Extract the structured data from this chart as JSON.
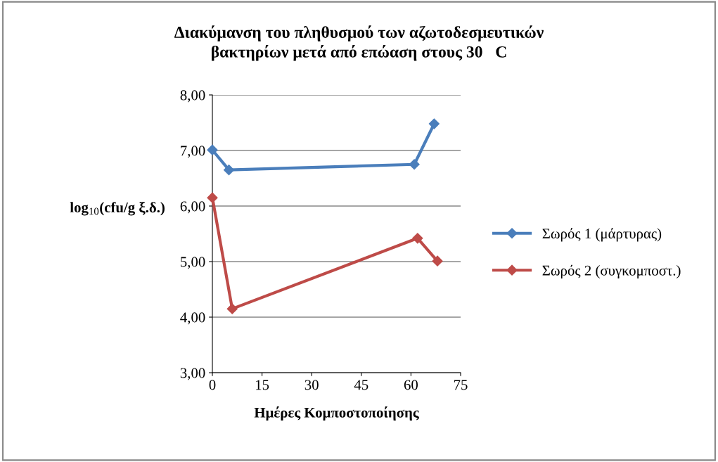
{
  "chart_data": {
    "type": "line",
    "title": "Διακύμανση του πληθυσμού των αζωτοδεσμευτικών\nβακτηρίων μετά από επώαση στους 30   C",
    "xlabel": "Ημέρες Κομποστοποίησης",
    "ylabel": "log$_{10}$(cfu/g ξ.δ.)",
    "series": [
      {
        "name": "Σωρός 1 (μάρτυρας)",
        "color": "#4a7ebb",
        "x": [
          0,
          5,
          61,
          67
        ],
        "values": [
          7.01,
          6.65,
          6.75,
          7.48
        ]
      },
      {
        "name": "Σωρός 2 (συγκομποστ.)",
        "color": "#be4b48",
        "x": [
          0,
          6,
          62,
          68
        ],
        "values": [
          6.15,
          4.15,
          5.42,
          5.01
        ]
      }
    ],
    "xlim": [
      0,
      75
    ],
    "xticks": [
      0,
      15,
      30,
      45,
      60,
      75
    ],
    "ylim": [
      3,
      8
    ],
    "yticks": [
      {
        "value": 3,
        "label": "3,00"
      },
      {
        "value": 4,
        "label": "4,00"
      },
      {
        "value": 5,
        "label": "5,00"
      },
      {
        "value": 6,
        "label": "6,00"
      },
      {
        "value": 7,
        "label": "7,00"
      },
      {
        "value": 8,
        "label": "8,00"
      }
    ],
    "grid": "y",
    "legend": "right",
    "marker": "diamond",
    "line_style": "solid"
  }
}
